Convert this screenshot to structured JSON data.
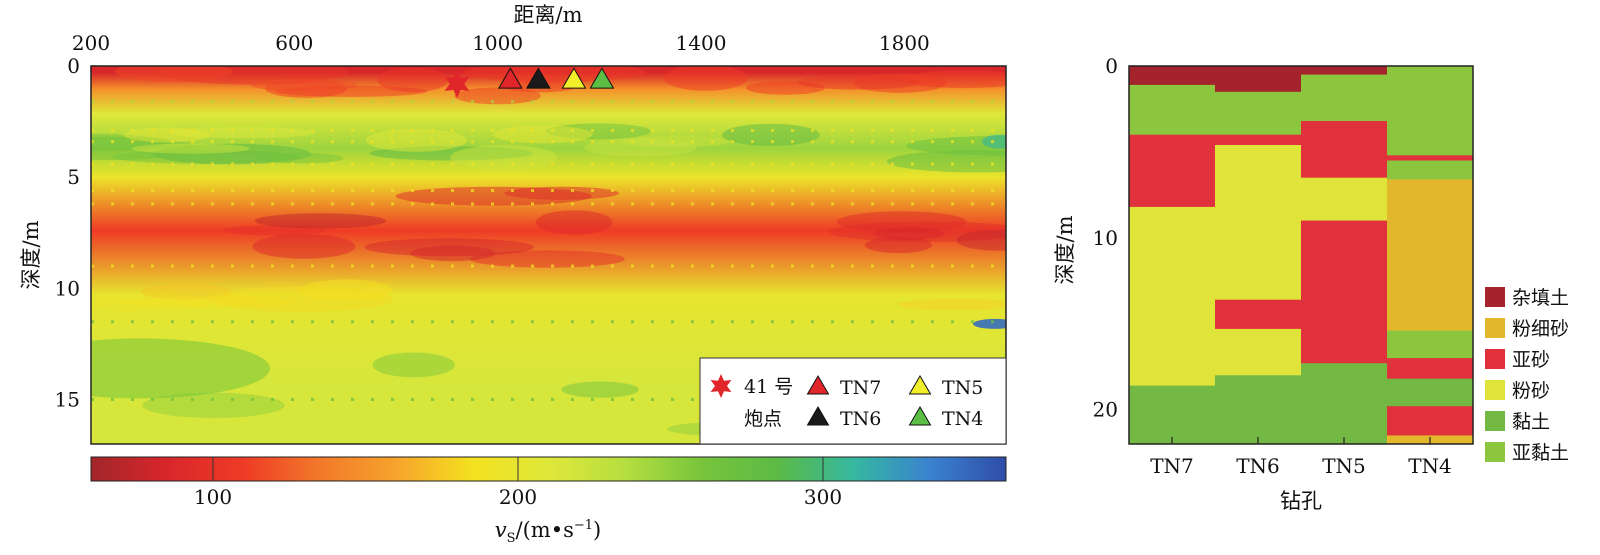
{
  "chart_data": [
    {
      "type": "heatmap",
      "xlabel": "距离/m",
      "ylabel": "深度/m",
      "xlim": [
        200,
        2000
      ],
      "ylim": [
        0,
        17
      ],
      "x_ticks": [
        "200",
        "600",
        "1000",
        "1400",
        "1800"
      ],
      "y_ticks": [
        "0",
        "5",
        "10",
        "15"
      ],
      "colorbar": {
        "label_main": "v",
        "label_sub": "S",
        "label_unit": "/(m•s",
        "label_exp": "−1",
        "label_close": ")",
        "range": [
          60,
          360
        ],
        "ticks": [
          "100",
          "200",
          "300"
        ],
        "stops": [
          "#a0262a",
          "#d9262b",
          "#ee3b26",
          "#f2792a",
          "#f6a32c",
          "#f4e11f",
          "#dfe83a",
          "#b6de3f",
          "#78c53c",
          "#5cba45",
          "#35b8a0",
          "#3a82cf",
          "#2f4da8"
        ]
      },
      "layers": [
        {
          "depth": [
            0,
            0.6
          ],
          "vs": 85
        },
        {
          "depth": [
            0.6,
            1.5
          ],
          "vs": 150
        },
        {
          "depth": [
            1.5,
            2.8
          ],
          "vs": 210
        },
        {
          "depth": [
            2.8,
            4.6
          ],
          "vs": 245
        },
        {
          "depth": [
            4.6,
            5.4
          ],
          "vs": 195
        },
        {
          "depth": [
            5.4,
            9.4
          ],
          "vs": 110
        },
        {
          "depth": [
            9.4,
            11.2
          ],
          "vs": 200
        },
        {
          "depth": [
            11.2,
            17
          ],
          "vs": 215
        }
      ],
      "markers": [
        {
          "label": "41 号炮点",
          "symbol": "star",
          "x": 920,
          "depth": 0.8,
          "color": "#e0252b"
        },
        {
          "label": "TN7",
          "symbol": "triangle",
          "x": 1025,
          "depth": 0.6,
          "color": "#e0252b"
        },
        {
          "label": "TN6",
          "symbol": "triangle",
          "x": 1080,
          "depth": 0.6,
          "color": "#1a1a1a"
        },
        {
          "label": "TN5",
          "symbol": "triangle",
          "x": 1150,
          "depth": 0.6,
          "color": "#f2ef2a"
        },
        {
          "label": "TN4",
          "symbol": "triangle",
          "x": 1205,
          "depth": 0.6,
          "color": "#5cbd44"
        }
      ],
      "legend": {
        "star_line1": "41 号",
        "star_line2": "炮点",
        "items": [
          "TN7",
          "TN6",
          "TN5",
          "TN4"
        ],
        "position": "bottom-right"
      }
    },
    {
      "type": "bar",
      "stacked": true,
      "xlabel": "钻孔",
      "ylabel": "深度/m",
      "categories": [
        "TN7",
        "TN6",
        "TN5",
        "TN4"
      ],
      "ylim": [
        0,
        22
      ],
      "y_ticks": [
        "0",
        "10",
        "20"
      ],
      "legend": [
        {
          "name": "杂填土",
          "color": "#a5232c"
        },
        {
          "name": "粉细砂",
          "color": "#e2b72b"
        },
        {
          "name": "亚砂",
          "color": "#e0313d"
        },
        {
          "name": "粉砂",
          "color": "#dfe33a"
        },
        {
          "name": "黏土",
          "color": "#72b843"
        },
        {
          "name": "亚黏土",
          "color": "#8cc63f"
        }
      ],
      "boreholes": [
        {
          "name": "TN7",
          "layers": [
            {
              "soil": "杂填土",
              "top": 0,
              "bottom": 1.1
            },
            {
              "soil": "亚黏土",
              "top": 1.1,
              "bottom": 4.0
            },
            {
              "soil": "亚砂",
              "top": 4.0,
              "bottom": 8.2
            },
            {
              "soil": "粉砂",
              "top": 8.2,
              "bottom": 18.6
            },
            {
              "soil": "黏土",
              "top": 18.6,
              "bottom": 22
            }
          ]
        },
        {
          "name": "TN6",
          "layers": [
            {
              "soil": "杂填土",
              "top": 0,
              "bottom": 1.5
            },
            {
              "soil": "亚黏土",
              "top": 1.5,
              "bottom": 4.0
            },
            {
              "soil": "亚砂",
              "top": 4.0,
              "bottom": 4.6
            },
            {
              "soil": "粉砂",
              "top": 4.6,
              "bottom": 13.6
            },
            {
              "soil": "亚砂",
              "top": 13.6,
              "bottom": 15.3
            },
            {
              "soil": "粉砂",
              "top": 15.3,
              "bottom": 18.0
            },
            {
              "soil": "黏土",
              "top": 18.0,
              "bottom": 22
            }
          ]
        },
        {
          "name": "TN5",
          "layers": [
            {
              "soil": "杂填土",
              "top": 0,
              "bottom": 0.5
            },
            {
              "soil": "亚黏土",
              "top": 0.5,
              "bottom": 3.2
            },
            {
              "soil": "亚砂",
              "top": 3.2,
              "bottom": 6.5
            },
            {
              "soil": "粉砂",
              "top": 6.5,
              "bottom": 9.0
            },
            {
              "soil": "亚砂",
              "top": 9.0,
              "bottom": 17.3
            },
            {
              "soil": "黏土",
              "top": 17.3,
              "bottom": 22
            }
          ]
        },
        {
          "name": "TN4",
          "layers": [
            {
              "soil": "亚黏土",
              "top": 0,
              "bottom": 5.2
            },
            {
              "soil": "亚砂",
              "top": 5.2,
              "bottom": 5.5
            },
            {
              "soil": "亚黏土",
              "top": 5.5,
              "bottom": 6.6
            },
            {
              "soil": "粉细砂",
              "top": 6.6,
              "bottom": 15.4
            },
            {
              "soil": "亚黏土",
              "top": 15.4,
              "bottom": 17.0
            },
            {
              "soil": "亚砂",
              "top": 17.0,
              "bottom": 18.2
            },
            {
              "soil": "黏土",
              "top": 18.2,
              "bottom": 19.8
            },
            {
              "soil": "亚砂",
              "top": 19.8,
              "bottom": 21.5
            },
            {
              "soil": "粉细砂",
              "top": 21.5,
              "bottom": 22
            }
          ]
        }
      ]
    }
  ]
}
